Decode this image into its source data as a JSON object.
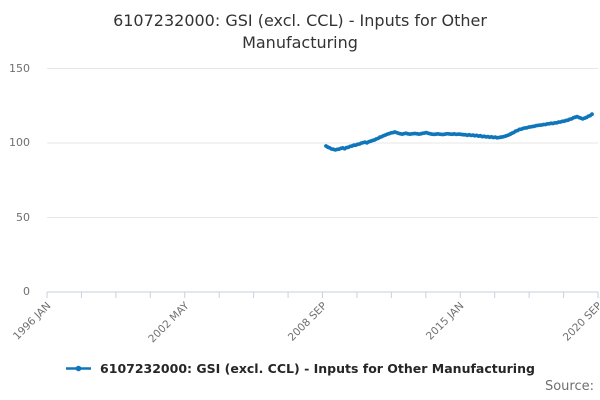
{
  "title": "6107232000: GSI (excl. CCL) - Inputs for Other Manufacturing",
  "legend": {
    "label": "6107232000: GSI (excl. CCL) - Inputs for Other Manufacturing"
  },
  "footer": {
    "source_label": "Source:"
  },
  "colors": {
    "line": "#1076bc",
    "gridline": "#e7e7e7",
    "axis": "#c6d1e2",
    "tick_label": "#6f6f6f",
    "title": "#333333",
    "legend_text": "#262626",
    "source_text": "#6f6f6f"
  },
  "chart_data": {
    "type": "line",
    "title": "6107232000: GSI (excl. CCL) - Inputs for Other Manufacturing",
    "xlabel": "",
    "ylabel": "",
    "ylim": [
      0,
      150
    ],
    "y_ticks": [
      0,
      50,
      100,
      150
    ],
    "y_tick_labels": [
      "150",
      "100",
      "50",
      "0"
    ],
    "x_tick_labels": [
      "1996 JAN",
      "2002 MAY",
      "2008 SEP",
      "2015 JAN",
      "2020 SEP"
    ],
    "x_tick_count": 17,
    "x_range_start": "1996 JAN",
    "x_range_end": "2020 SEP",
    "grid": "horizontal-only",
    "legend_position": "bottom",
    "series": [
      {
        "name": "6107232000: GSI (excl. CCL) - Inputs for Other Manufacturing",
        "frequency": "monthly",
        "start_month": "2008 OCT",
        "end_month": "2020 SEP",
        "values": [
          98.0,
          97.2,
          96.7,
          96.0,
          95.8,
          95.4,
          95.7,
          95.9,
          96.4,
          96.7,
          96.2,
          96.9,
          97.1,
          97.7,
          98.0,
          98.5,
          98.6,
          99.1,
          99.3,
          99.9,
          100.3,
          100.6,
          100.1,
          100.8,
          101.2,
          101.7,
          102.0,
          102.7,
          103.1,
          103.9,
          104.3,
          105.0,
          105.4,
          106.0,
          106.3,
          106.8,
          107.0,
          107.4,
          107.0,
          106.5,
          106.2,
          106.0,
          106.3,
          106.5,
          106.2,
          106.0,
          106.1,
          106.3,
          106.4,
          106.2,
          106.0,
          106.2,
          106.5,
          106.7,
          106.9,
          106.5,
          106.2,
          106.0,
          105.8,
          105.9,
          106.1,
          106.0,
          105.8,
          105.7,
          106.0,
          106.2,
          106.1,
          106.0,
          105.9,
          106.1,
          105.8,
          106.0,
          105.9,
          105.7,
          105.6,
          105.5,
          105.2,
          105.5,
          105.1,
          105.3,
          104.9,
          105.1,
          104.6,
          104.8,
          104.3,
          104.5,
          104.1,
          104.2,
          103.9,
          104.1,
          103.7,
          103.9,
          103.5,
          103.7,
          103.9,
          104.1,
          104.4,
          104.8,
          105.3,
          105.9,
          106.6,
          107.1,
          108.0,
          108.4,
          109.1,
          109.3,
          109.8,
          110.1,
          110.2,
          110.7,
          110.8,
          111.1,
          111.2,
          111.7,
          111.8,
          112.0,
          112.1,
          112.4,
          112.4,
          112.8,
          112.9,
          113.2,
          113.1,
          113.5,
          113.5,
          114.0,
          114.1,
          114.5,
          114.6,
          115.1,
          115.3,
          115.9,
          116.2,
          116.9,
          117.3,
          117.7,
          117.1,
          116.7,
          116.2,
          116.7,
          117.1,
          117.9,
          118.4,
          119.3
        ]
      }
    ]
  }
}
